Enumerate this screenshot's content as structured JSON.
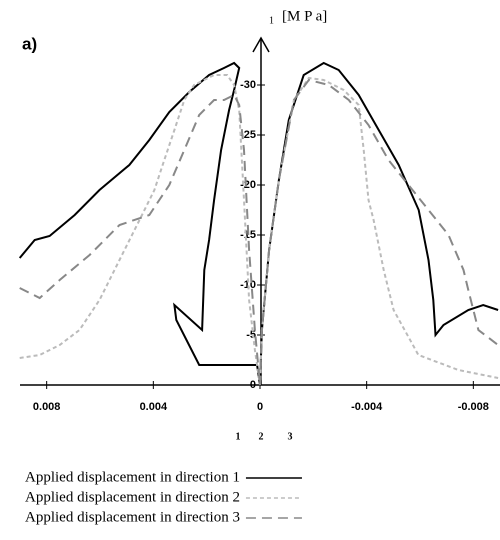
{
  "chart_data": {
    "type": "line",
    "panel_label": "a)",
    "ylabel_sub": "1",
    "ylabel": "[M P a]",
    "x_sub_labels": [
      "1",
      "2",
      "3"
    ],
    "xlim": [
      0.009,
      -0.009
    ],
    "ylim": [
      0,
      -35
    ],
    "xticks": [
      0.008,
      0.004,
      0,
      -0.004,
      -0.008
    ],
    "yticks": [
      0,
      -5,
      -10,
      -15,
      -20,
      -25,
      -30
    ],
    "series": [
      {
        "name": "Applied displacement in direction 1",
        "color": "#000000",
        "style": "solid",
        "x": [
          0.00901,
          0.00845,
          0.00789,
          0.00695,
          0.00602,
          0.0049,
          0.00415,
          0.0034,
          0.00265,
          0.00191,
          0.00135,
          0.00097,
          0.00078,
          0.00097,
          0.00116,
          0.00146,
          0.00172,
          0.00191,
          0.00209,
          0.00217,
          0.00321,
          0.00314,
          0.00228,
          0.0006,
          0.00011,
          0,
          -7e-05,
          -0.00034,
          -0.00071,
          -0.00108,
          -0.00164,
          -0.00239,
          -0.00295,
          -0.0037,
          -0.00445,
          -0.0052,
          -0.00595,
          -0.00632,
          -0.0065,
          -0.00658,
          -0.00688,
          -0.00781,
          -0.00837,
          -0.00893
        ],
        "values": [
          -12.7,
          -14.5,
          -14.9,
          -17.0,
          -19.5,
          -22.0,
          -24.5,
          -27.3,
          -29.3,
          -31.0,
          -31.7,
          -32.2,
          -31.7,
          -29.5,
          -27.5,
          -23.5,
          -18.5,
          -14.5,
          -11.5,
          -5.5,
          -8.0,
          -6.5,
          -2.0,
          -2.0,
          -2.0,
          0,
          -5.5,
          -13.5,
          -20.5,
          -26.5,
          -31.0,
          -32.2,
          -31.5,
          -29.0,
          -25.5,
          -22.0,
          -17.5,
          -12.5,
          -8.5,
          -5.0,
          -6.0,
          -7.5,
          -8.0,
          -7.5
        ]
      },
      {
        "name": "Applied displacement in direction 2",
        "color": "#bbbbbb",
        "style": "dotted",
        "x": [
          0.00901,
          0.00826,
          0.00751,
          0.00677,
          0.00602,
          0.00527,
          0.00452,
          0.00396,
          0.00359,
          0.00321,
          0.00284,
          0.00247,
          0.00172,
          0.00123,
          0.00097,
          0.00078,
          0.0006,
          0.00041,
          0.00019,
          0,
          -7e-05,
          -0.00034,
          -0.00071,
          -0.00127,
          -0.00183,
          -0.00239,
          -0.00314,
          -0.0037,
          -0.00389,
          -0.00407,
          -0.00426,
          -0.00464,
          -0.00501,
          -0.00594,
          -0.00744,
          -0.00893
        ],
        "values": [
          -2.7,
          -3.0,
          -4.0,
          -5.5,
          -8.5,
          -12.5,
          -16.5,
          -19.5,
          -22.5,
          -25.5,
          -28.5,
          -30.0,
          -31.0,
          -31.0,
          -30.0,
          -27.5,
          -18.5,
          -8.5,
          -3.5,
          0,
          -5.5,
          -13.5,
          -20.5,
          -28.5,
          -30.7,
          -30.5,
          -29.5,
          -28.0,
          -23.5,
          -18.5,
          -16.5,
          -11.5,
          -7.5,
          -3.0,
          -1.5,
          -0.7
        ]
      },
      {
        "name": "Applied displacement in direction 3",
        "color": "#888888",
        "style": "dashed",
        "x": [
          0.00901,
          0.00826,
          0.00751,
          0.00639,
          0.00527,
          0.00415,
          0.0034,
          0.00284,
          0.00228,
          0.00172,
          0.00135,
          0.00097,
          0.00078,
          0.0006,
          0.00041,
          0.00019,
          0,
          -7e-05,
          -0.00034,
          -0.00071,
          -0.00127,
          -0.00183,
          -0.00258,
          -0.00333,
          -0.00407,
          -0.00482,
          -0.00557,
          -0.00632,
          -0.00707,
          -0.00763,
          -0.00781,
          -0.00819,
          -0.00893
        ],
        "values": [
          -9.7,
          -8.7,
          -10.5,
          -13.0,
          -16.0,
          -17.0,
          -20.0,
          -23.5,
          -27.0,
          -28.5,
          -28.5,
          -29.0,
          -28.0,
          -23.5,
          -13.5,
          -5.5,
          0,
          -5.5,
          -13.5,
          -20.5,
          -28.5,
          -30.5,
          -30.0,
          -28.5,
          -26.0,
          -22.5,
          -20.0,
          -17.5,
          -15.0,
          -11.5,
          -9.5,
          -5.5,
          -4.0
        ]
      }
    ]
  }
}
